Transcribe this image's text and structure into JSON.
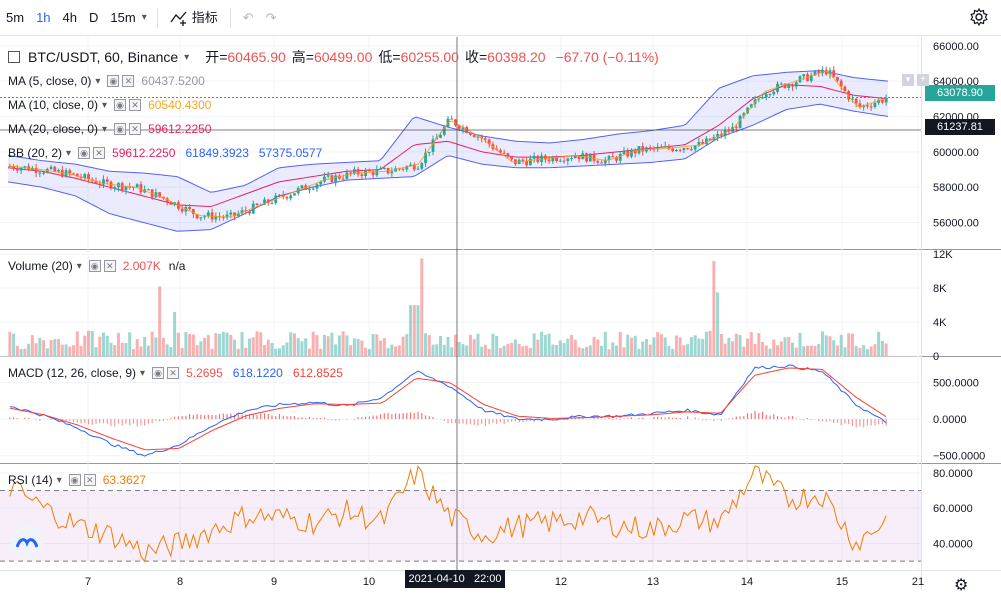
{
  "toolbar": {
    "intervals": [
      "5m",
      "1h",
      "4h",
      "D",
      "15m"
    ],
    "active_interval": "1h",
    "indicators_label": "指标"
  },
  "header": {
    "symbol": "BTC/USDT, 60, Binance",
    "open_label": "开=",
    "open": "60465.90",
    "high_label": "高=",
    "high": "60499.00",
    "low_label": "低=",
    "low": "60255.00",
    "close_label": "收=",
    "close": "60398.20",
    "change": "−67.70 (−0.11%)"
  },
  "legends": {
    "ma5": {
      "label": "MA (5, close, 0)",
      "value": "60437.5200"
    },
    "ma10": {
      "label": "MA (10, close, 0)",
      "value": "60540.4300"
    },
    "ma20": {
      "label": "MA (20, close, 0)",
      "value": "59612.2250"
    },
    "bb": {
      "label": "BB (20, 2)",
      "v1": "59612.2250",
      "v2": "61849.3923",
      "v3": "57375.0577"
    },
    "volume": {
      "label": "Volume (20)",
      "v1": "2.007K",
      "v2": "n/a"
    },
    "macd": {
      "label": "MACD (12, 26, close, 9)",
      "v1": "5.2695",
      "v2": "618.1220",
      "v3": "612.8525"
    },
    "rsi": {
      "label": "RSI (14)",
      "v1": "63.3627"
    }
  },
  "price_tags": {
    "current": "63078.90",
    "crosshair": "61237.81"
  },
  "crosshair_time": "2021-04-10   22:00",
  "colors": {
    "up": "#26a69a",
    "down": "#ef5350",
    "ma5": "#f5a623",
    "ma10": "#ff9800",
    "ma20": "#e91e63",
    "bb": "#5460f6",
    "macd": "#2962ff",
    "signal": "#f44336",
    "rsi": "#f57c00"
  },
  "chart_data": [
    {
      "type": "candlestick",
      "title": "BTC/USDT, 60, Binance",
      "x_ticks": [
        "7",
        "8",
        "9",
        "10",
        "11",
        "12",
        "13",
        "14",
        "15",
        "21"
      ],
      "y_ticks": [
        "66000.00",
        "64000.00",
        "62000.00",
        "60000.00",
        "58000.00",
        "56000.00"
      ],
      "ylim": [
        54500,
        66500
      ],
      "series": [
        {
          "name": "BB (20, 2)",
          "values_basis": [
            59100,
            58900,
            58500,
            58000,
            57500,
            57000,
            56900,
            57600,
            58300,
            58600,
            58900,
            59000,
            60400,
            60600,
            60000,
            59700,
            59700,
            59800,
            60000,
            60200,
            60400,
            61500,
            63000,
            63800,
            63700,
            63200,
            63000
          ],
          "upper": [
            59800,
            59500,
            59300,
            58900,
            58800,
            58600,
            57700,
            58100,
            59100,
            59300,
            59400,
            59500,
            62000,
            61400,
            60900,
            60600,
            60500,
            60700,
            61000,
            61200,
            61500,
            63600,
            64300,
            64500,
            64600,
            64200,
            64000
          ],
          "lower": [
            58300,
            58000,
            57500,
            56500,
            56000,
            55500,
            55600,
            56500,
            57500,
            58000,
            58400,
            58500,
            58600,
            59800,
            59300,
            59100,
            59100,
            59200,
            59300,
            59400,
            59600,
            60800,
            61500,
            62400,
            62700,
            62300,
            62000
          ]
        }
      ],
      "closes": [
        59200,
        59000,
        58700,
        58200,
        58000,
        57300,
        56400,
        56300,
        57000,
        57700,
        58400,
        58800,
        58900,
        59300,
        61800,
        60800,
        59400,
        59600,
        59800,
        59500,
        60100,
        60200,
        60400,
        61300,
        63400,
        64000,
        64600,
        62500,
        63100
      ]
    },
    {
      "type": "bar",
      "title": "Volume (20)",
      "y_ticks": [
        "12K",
        "8K",
        "4K",
        "0"
      ],
      "ylim": [
        0,
        12500
      ]
    },
    {
      "type": "line",
      "title": "MACD (12, 26, close, 9)",
      "y_ticks": [
        "500.0000",
        "0.0000",
        "−500.0000"
      ],
      "ylim": [
        -600,
        850
      ]
    },
    {
      "type": "line",
      "title": "RSI (14)",
      "y_ticks": [
        "80.0000",
        "60.0000",
        "40.0000"
      ],
      "ylim": [
        25,
        85
      ],
      "bands": [
        70,
        30
      ]
    }
  ]
}
